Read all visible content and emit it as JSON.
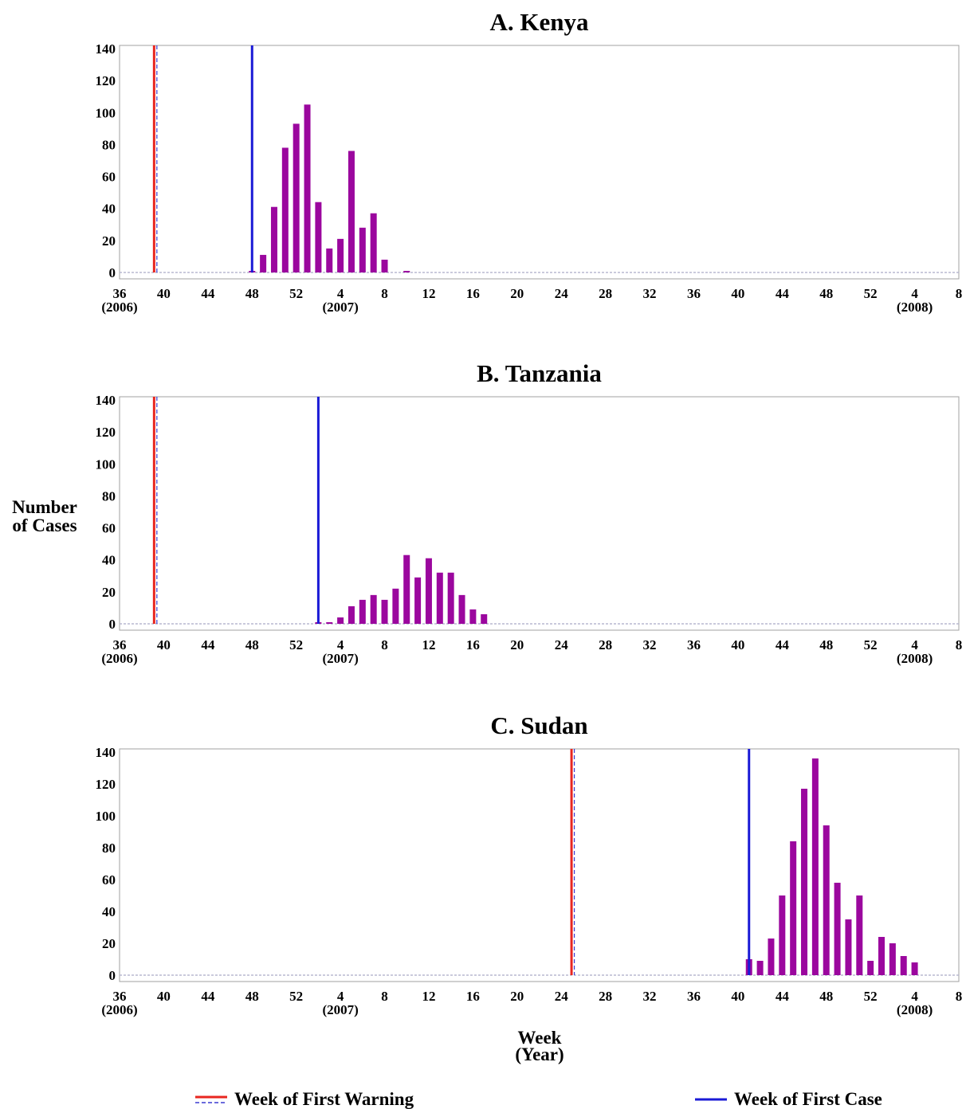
{
  "chart_data": {
    "type": "bar",
    "shared": {
      "ylabel_line1": "Number",
      "ylabel_line2": "of Cases",
      "xlabel_line1": "Week",
      "xlabel_line2": "(Year)",
      "ylim": [
        0,
        140
      ],
      "y_ticks": [
        0,
        20,
        40,
        60,
        80,
        100,
        120,
        140
      ],
      "x_ticks": [
        {
          "week": 36,
          "label": "36",
          "year": "(2006)"
        },
        {
          "week": 40,
          "label": "40"
        },
        {
          "week": 44,
          "label": "44"
        },
        {
          "week": 48,
          "label": "48"
        },
        {
          "week": 52,
          "label": "52"
        },
        {
          "week": 56,
          "label": "4",
          "year": "(2007)"
        },
        {
          "week": 60,
          "label": "8"
        },
        {
          "week": 64,
          "label": "12"
        },
        {
          "week": 68,
          "label": "16"
        },
        {
          "week": 72,
          "label": "20"
        },
        {
          "week": 76,
          "label": "24"
        },
        {
          "week": 80,
          "label": "28"
        },
        {
          "week": 84,
          "label": "32"
        },
        {
          "week": 88,
          "label": "36"
        },
        {
          "week": 92,
          "label": "40"
        },
        {
          "week": 96,
          "label": "44"
        },
        {
          "week": 100,
          "label": "48"
        },
        {
          "week": 104,
          "label": "52"
        },
        {
          "week": 108,
          "label": "4",
          "year": "(2008)"
        },
        {
          "week": 112,
          "label": "8"
        }
      ],
      "xlim": [
        36,
        112
      ],
      "legend": [
        {
          "label": "Week of First Warning",
          "color": "#e8261f",
          "dash_color": "#3a3ad0"
        },
        {
          "label": "Week of First Case",
          "color": "#1a1ad6"
        }
      ]
    },
    "panels": [
      {
        "title": "A. Kenya",
        "first_warning_week": 39.2,
        "first_case_week": 48,
        "bars": [
          {
            "week": 48,
            "value": 1
          },
          {
            "week": 49,
            "value": 11
          },
          {
            "week": 50,
            "value": 41
          },
          {
            "week": 51,
            "value": 78
          },
          {
            "week": 52,
            "value": 93
          },
          {
            "week": 53,
            "value": 105
          },
          {
            "week": 54,
            "value": 44
          },
          {
            "week": 55,
            "value": 15
          },
          {
            "week": 56,
            "value": 21
          },
          {
            "week": 57,
            "value": 76
          },
          {
            "week": 58,
            "value": 28
          },
          {
            "week": 59,
            "value": 37
          },
          {
            "week": 60,
            "value": 8
          },
          {
            "week": 62,
            "value": 1
          }
        ]
      },
      {
        "title": "B. Tanzania",
        "first_warning_week": 39.2,
        "first_case_week": 54,
        "bars": [
          {
            "week": 54,
            "value": 1
          },
          {
            "week": 55,
            "value": 1
          },
          {
            "week": 56,
            "value": 4
          },
          {
            "week": 57,
            "value": 11
          },
          {
            "week": 58,
            "value": 15
          },
          {
            "week": 59,
            "value": 18
          },
          {
            "week": 60,
            "value": 15
          },
          {
            "week": 61,
            "value": 22
          },
          {
            "week": 62,
            "value": 43
          },
          {
            "week": 63,
            "value": 29
          },
          {
            "week": 64,
            "value": 41
          },
          {
            "week": 65,
            "value": 32
          },
          {
            "week": 66,
            "value": 32
          },
          {
            "week": 67,
            "value": 18
          },
          {
            "week": 68,
            "value": 9
          },
          {
            "week": 69,
            "value": 6
          }
        ]
      },
      {
        "title": "C. Sudan",
        "first_warning_week": 77,
        "first_case_week": 93,
        "bars": [
          {
            "week": 93,
            "value": 10
          },
          {
            "week": 94,
            "value": 9
          },
          {
            "week": 95,
            "value": 23
          },
          {
            "week": 96,
            "value": 50
          },
          {
            "week": 97,
            "value": 84
          },
          {
            "week": 98,
            "value": 117
          },
          {
            "week": 99,
            "value": 136
          },
          {
            "week": 100,
            "value": 94
          },
          {
            "week": 101,
            "value": 58
          },
          {
            "week": 102,
            "value": 35
          },
          {
            "week": 103,
            "value": 50
          },
          {
            "week": 104,
            "value": 9
          },
          {
            "week": 105,
            "value": 24
          },
          {
            "week": 106,
            "value": 20
          },
          {
            "week": 107,
            "value": 12
          },
          {
            "week": 108,
            "value": 8
          }
        ]
      }
    ],
    "colors": {
      "bar": "#9b079e",
      "warning": "#e8261f",
      "warning_dash": "#3a3ad0",
      "first_case": "#1a1ad6",
      "axis_frame": "#a0a0a0",
      "baseline": "#b8b8d0"
    }
  }
}
